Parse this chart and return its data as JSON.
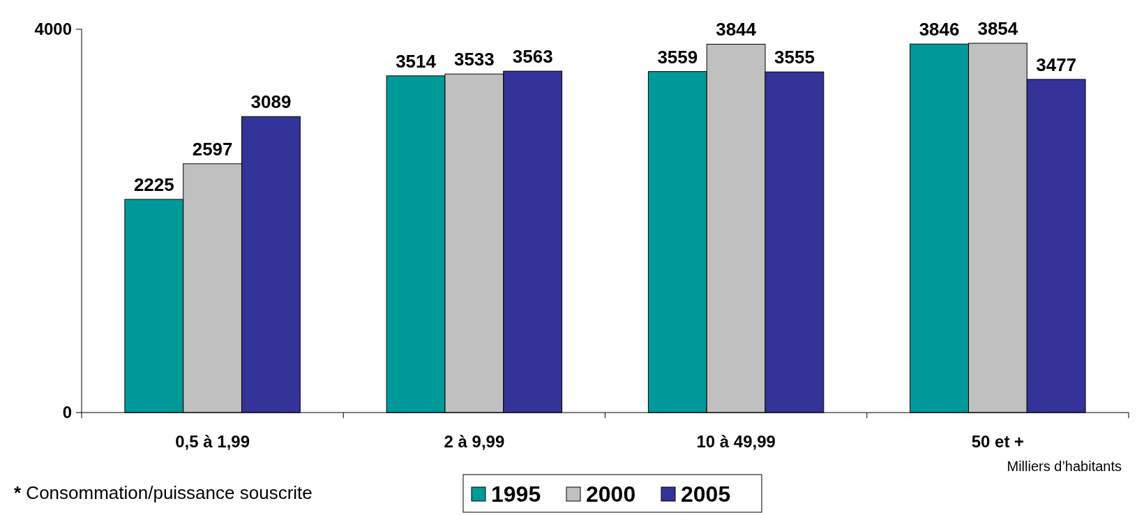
{
  "chart_data": {
    "type": "bar",
    "categories": [
      "0,5 à 1,99",
      "2 à 9,99",
      "10 à 49,99",
      "50 et +"
    ],
    "series": [
      {
        "name": "1995",
        "color": "#009999",
        "values": [
          2225,
          3514,
          3559,
          3846
        ]
      },
      {
        "name": "2000",
        "color": "#c0c0c0",
        "values": [
          2597,
          3533,
          3844,
          3854
        ]
      },
      {
        "name": "2005",
        "color": "#333399",
        "values": [
          3089,
          3563,
          3555,
          3477
        ]
      }
    ],
    "ylim": [
      0,
      4000
    ],
    "yticks": [
      0,
      4000
    ],
    "data_labels": true,
    "grid": false,
    "legend": "bottom",
    "xlabel": "Milliers d’habitants",
    "annotations": [
      "* Consommation/puissance souscrite"
    ]
  }
}
